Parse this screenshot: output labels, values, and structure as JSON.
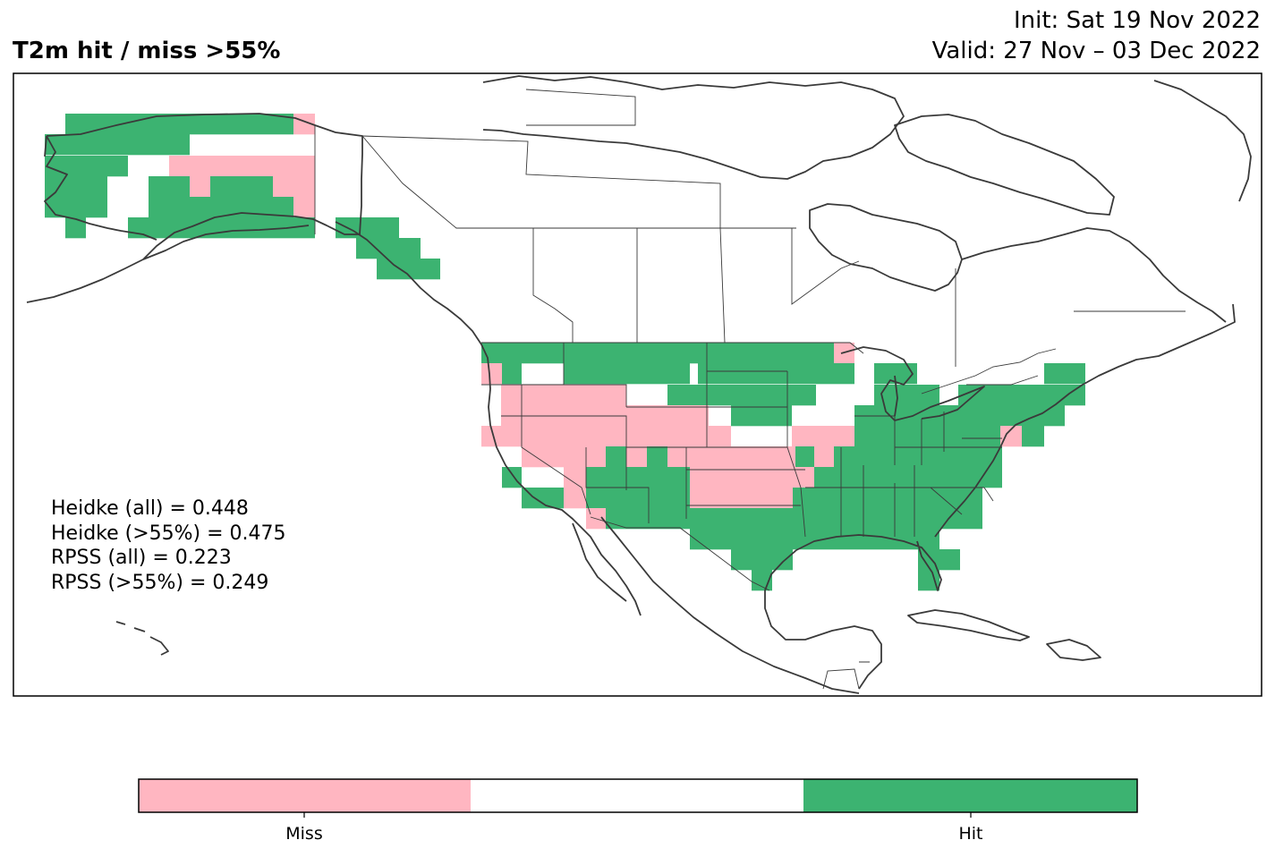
{
  "header": {
    "title": "T2m hit / miss  >55%",
    "init": "Init: Sat 19 Nov 2022",
    "valid": "Valid: 27 Nov – 03 Dec 2022"
  },
  "stats": [
    "Heidke (all) = 0.448",
    "Heidke (>55%) = 0.475",
    "RPSS (all) = 0.223",
    "RPSS (>55%) = 0.249"
  ],
  "colorbar": {
    "miss_label": "Miss",
    "hit_label": "Hit",
    "colors": [
      "#ffb6c1",
      "#ffffff",
      "#3cb371"
    ]
  },
  "colors": {
    "hit": "#3cb371",
    "miss": "#ffb6c1",
    "coast": "#3a3a3a"
  }
}
